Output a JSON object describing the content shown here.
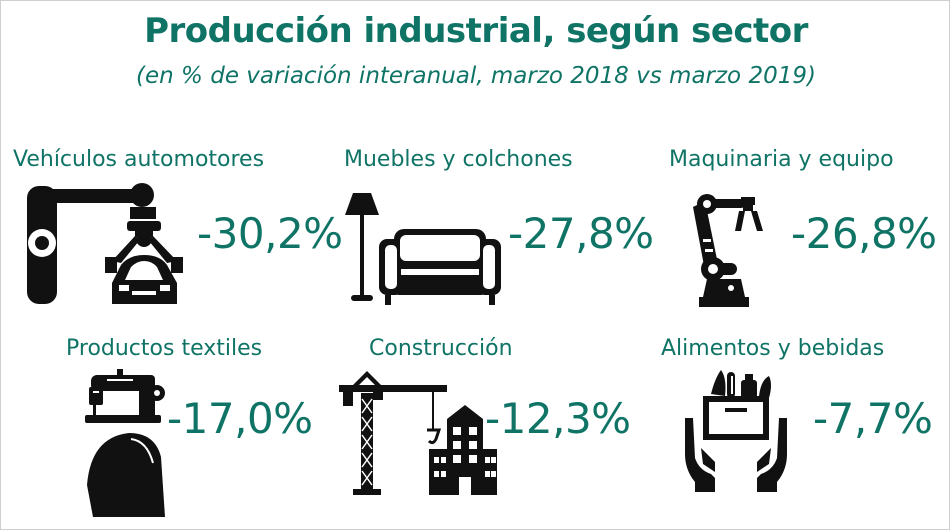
{
  "title": "Producción industrial, según sector",
  "subtitle": "(en % de variación interanual, marzo 2018 vs marzo 2019)",
  "colors": {
    "accent": "#0f7466",
    "icon": "#111111"
  },
  "chart_data": {
    "type": "table",
    "title": "Producción industrial, según sector",
    "subtitle": "(en % de variación interanual, marzo 2018 vs marzo 2019)",
    "categories": [
      "Vehículos automotores",
      "Muebles y colchones",
      "Maquinaria y equipo",
      "Productos textiles",
      "Construcción",
      "Alimentos y bebidas"
    ],
    "values": [
      -30.2,
      -27.8,
      -26.8,
      -17.0,
      -12.3,
      -7.7
    ],
    "value_labels": [
      "-30,2%",
      "-27,8%",
      "-26,8%",
      "-17,0%",
      "-12,3%",
      "-7,7%"
    ],
    "icons": [
      "robot-arm-car-icon",
      "floor-lamp-sofa-icon",
      "industrial-robot-arm-icon",
      "sewing-machine-fabric-icon",
      "crane-building-icon",
      "hands-food-box-icon"
    ]
  }
}
